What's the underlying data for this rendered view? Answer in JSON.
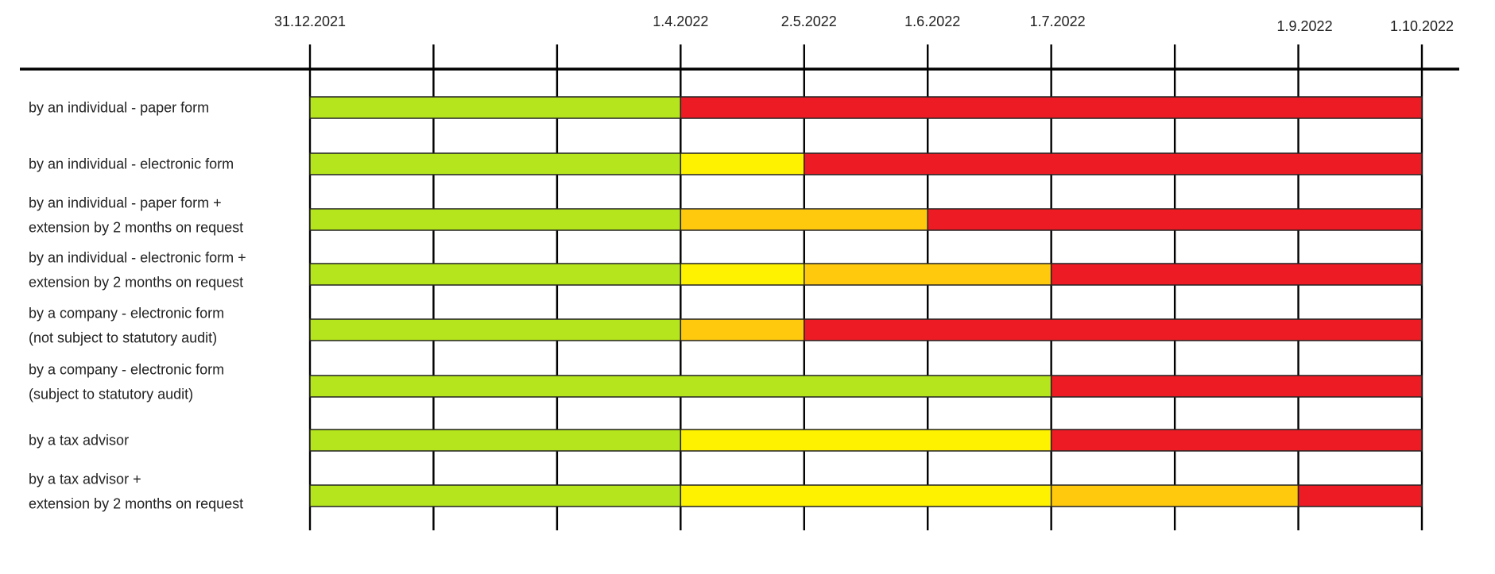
{
  "chart_data": {
    "type": "gantt",
    "title": "",
    "ticks": [
      "31.12.2021",
      "",
      "",
      "1.4.2022",
      "2.5.2022",
      "1.6.2022",
      "1.7.2022",
      "",
      "1.9.2022",
      "1.10.2022"
    ],
    "tick_labels": [
      "31.12.2021",
      "1.4.2022",
      "2.5.2022",
      "1.6.2022",
      "1.7.2022",
      "1.9.2022",
      "1.10.2022"
    ],
    "xlim": [
      "31.12.2021",
      "1.10.2022"
    ],
    "colors": {
      "green": "#b5e61d",
      "yellow": "#fff200",
      "orange": "#ffc90e",
      "red": "#ed1c24"
    },
    "rows": [
      {
        "label": [
          "by an individual - paper form"
        ],
        "segments": [
          [
            "31.12.2021",
            "1.4.2022",
            "green"
          ],
          [
            "1.4.2022",
            "1.10.2022",
            "red"
          ]
        ]
      },
      {
        "label": [
          "by an individual - electronic form"
        ],
        "segments": [
          [
            "31.12.2021",
            "1.4.2022",
            "green"
          ],
          [
            "1.4.2022",
            "2.5.2022",
            "yellow"
          ],
          [
            "2.5.2022",
            "1.10.2022",
            "red"
          ]
        ]
      },
      {
        "label": [
          "by an individual - paper form +",
          "extension by 2 months on request"
        ],
        "segments": [
          [
            "31.12.2021",
            "1.4.2022",
            "green"
          ],
          [
            "1.4.2022",
            "1.6.2022",
            "orange"
          ],
          [
            "1.6.2022",
            "1.10.2022",
            "red"
          ]
        ]
      },
      {
        "label": [
          "by an individual - electronic form +",
          "extension by 2 months on request"
        ],
        "segments": [
          [
            "31.12.2021",
            "1.4.2022",
            "green"
          ],
          [
            "1.4.2022",
            "2.5.2022",
            "yellow"
          ],
          [
            "2.5.2022",
            "1.7.2022",
            "orange"
          ],
          [
            "1.7.2022",
            "1.10.2022",
            "red"
          ]
        ]
      },
      {
        "label": [
          "by a company - electronic form",
          "(not subject to statutory audit)"
        ],
        "segments": [
          [
            "31.12.2021",
            "1.4.2022",
            "green"
          ],
          [
            "1.4.2022",
            "2.5.2022",
            "orange"
          ],
          [
            "2.5.2022",
            "1.10.2022",
            "red"
          ]
        ]
      },
      {
        "label": [
          "by a company - electronic form",
          "(subject to statutory audit)"
        ],
        "segments": [
          [
            "31.12.2021",
            "1.7.2022",
            "green"
          ],
          [
            "1.7.2022",
            "1.10.2022",
            "red"
          ]
        ]
      },
      {
        "label": [
          "by a tax advisor"
        ],
        "segments": [
          [
            "31.12.2021",
            "1.4.2022",
            "green"
          ],
          [
            "1.4.2022",
            "1.7.2022",
            "yellow"
          ],
          [
            "1.7.2022",
            "1.10.2022",
            "red"
          ]
        ]
      },
      {
        "label": [
          "by a tax advisor +",
          "extension by 2 months on request"
        ],
        "segments": [
          [
            "31.12.2021",
            "1.4.2022",
            "green"
          ],
          [
            "1.4.2022",
            "1.7.2022",
            "yellow"
          ],
          [
            "1.7.2022",
            "1.9.2022",
            "orange"
          ],
          [
            "1.9.2022",
            "1.10.2022",
            "red"
          ]
        ]
      }
    ]
  }
}
